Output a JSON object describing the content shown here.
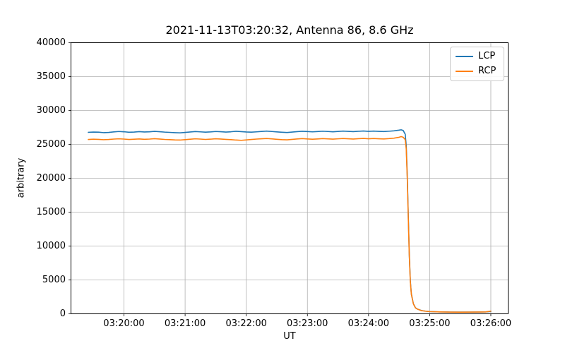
{
  "chart_data": {
    "type": "line",
    "title": "2021-11-13T03:20:32, Antenna 86, 8.6 GHz",
    "xlabel": "UT",
    "ylabel": "arbitrary",
    "x_axis_note": "x values are seconds relative to 03:20:00 UT",
    "xlim": [
      -52,
      377
    ],
    "ylim": [
      0,
      40000
    ],
    "grid": true,
    "grid_color": "#b0b0b0",
    "background_color": "#ffffff",
    "spine_color": "#000000",
    "xticks": [
      0,
      60,
      120,
      180,
      240,
      300,
      360
    ],
    "xtick_labels": [
      "03:20:00",
      "03:21:00",
      "03:22:00",
      "03:23:00",
      "03:24:00",
      "03:25:00",
      "03:26:00"
    ],
    "yticks": [
      0,
      5000,
      10000,
      15000,
      20000,
      25000,
      30000,
      35000,
      40000
    ],
    "ytick_labels": [
      "0",
      "5000",
      "10000",
      "15000",
      "20000",
      "25000",
      "30000",
      "35000",
      "40000"
    ],
    "legend": {
      "position": "upper right",
      "entries": [
        "LCP",
        "RCP"
      ]
    },
    "series": [
      {
        "name": "LCP",
        "color": "#1f77b4",
        "points": [
          [
            -35,
            26780
          ],
          [
            -30,
            26820
          ],
          [
            -25,
            26800
          ],
          [
            -20,
            26730
          ],
          [
            -15,
            26760
          ],
          [
            -10,
            26840
          ],
          [
            -5,
            26900
          ],
          [
            0,
            26860
          ],
          [
            5,
            26790
          ],
          [
            10,
            26820
          ],
          [
            15,
            26880
          ],
          [
            20,
            26830
          ],
          [
            25,
            26860
          ],
          [
            30,
            26920
          ],
          [
            35,
            26870
          ],
          [
            40,
            26810
          ],
          [
            45,
            26770
          ],
          [
            50,
            26730
          ],
          [
            55,
            26700
          ],
          [
            60,
            26760
          ],
          [
            65,
            26830
          ],
          [
            70,
            26890
          ],
          [
            75,
            26850
          ],
          [
            80,
            26800
          ],
          [
            85,
            26840
          ],
          [
            90,
            26900
          ],
          [
            95,
            26870
          ],
          [
            100,
            26820
          ],
          [
            105,
            26860
          ],
          [
            110,
            26930
          ],
          [
            115,
            26880
          ],
          [
            120,
            26830
          ],
          [
            125,
            26800
          ],
          [
            130,
            26850
          ],
          [
            135,
            26910
          ],
          [
            140,
            26960
          ],
          [
            145,
            26900
          ],
          [
            150,
            26840
          ],
          [
            155,
            26790
          ],
          [
            160,
            26750
          ],
          [
            165,
            26820
          ],
          [
            170,
            26880
          ],
          [
            175,
            26930
          ],
          [
            180,
            26890
          ],
          [
            185,
            26850
          ],
          [
            190,
            26890
          ],
          [
            195,
            26940
          ],
          [
            200,
            26900
          ],
          [
            205,
            26860
          ],
          [
            210,
            26910
          ],
          [
            215,
            26960
          ],
          [
            220,
            26920
          ],
          [
            225,
            26880
          ],
          [
            230,
            26930
          ],
          [
            235,
            26970
          ],
          [
            240,
            26920
          ],
          [
            245,
            26960
          ],
          [
            250,
            26920
          ],
          [
            255,
            26890
          ],
          [
            260,
            26940
          ],
          [
            265,
            27000
          ],
          [
            270,
            27100
          ],
          [
            272,
            27150
          ],
          [
            274,
            27050
          ],
          [
            276,
            26500
          ],
          [
            277,
            24800
          ],
          [
            278,
            20500
          ],
          [
            279,
            14500
          ],
          [
            280,
            8800
          ],
          [
            281,
            4900
          ],
          [
            282,
            2950
          ],
          [
            284,
            1500
          ],
          [
            286,
            900
          ],
          [
            288,
            700
          ],
          [
            292,
            480
          ],
          [
            296,
            390
          ],
          [
            300,
            330
          ],
          [
            310,
            280
          ],
          [
            320,
            260
          ],
          [
            330,
            250
          ],
          [
            340,
            255
          ],
          [
            350,
            265
          ],
          [
            355,
            280
          ],
          [
            360,
            340
          ]
        ]
      },
      {
        "name": "RCP",
        "color": "#ff7f0e",
        "points": [
          [
            -35,
            25720
          ],
          [
            -30,
            25760
          ],
          [
            -25,
            25740
          ],
          [
            -20,
            25690
          ],
          [
            -15,
            25720
          ],
          [
            -10,
            25780
          ],
          [
            -5,
            25820
          ],
          [
            0,
            25780
          ],
          [
            5,
            25720
          ],
          [
            10,
            25760
          ],
          [
            15,
            25800
          ],
          [
            20,
            25750
          ],
          [
            25,
            25780
          ],
          [
            30,
            25840
          ],
          [
            35,
            25790
          ],
          [
            40,
            25730
          ],
          [
            45,
            25700
          ],
          [
            50,
            25660
          ],
          [
            55,
            25640
          ],
          [
            60,
            25700
          ],
          [
            65,
            25760
          ],
          [
            70,
            25820
          ],
          [
            75,
            25780
          ],
          [
            80,
            25730
          ],
          [
            85,
            25770
          ],
          [
            90,
            25830
          ],
          [
            95,
            25790
          ],
          [
            100,
            25740
          ],
          [
            105,
            25700
          ],
          [
            110,
            25640
          ],
          [
            115,
            25600
          ],
          [
            120,
            25660
          ],
          [
            125,
            25720
          ],
          [
            130,
            25780
          ],
          [
            135,
            25830
          ],
          [
            140,
            25870
          ],
          [
            145,
            25810
          ],
          [
            150,
            25750
          ],
          [
            155,
            25700
          ],
          [
            160,
            25670
          ],
          [
            165,
            25740
          ],
          [
            170,
            25800
          ],
          [
            175,
            25850
          ],
          [
            180,
            25800
          ],
          [
            185,
            25760
          ],
          [
            190,
            25800
          ],
          [
            195,
            25850
          ],
          [
            200,
            25810
          ],
          [
            205,
            25770
          ],
          [
            210,
            25820
          ],
          [
            215,
            25870
          ],
          [
            220,
            25830
          ],
          [
            225,
            25790
          ],
          [
            230,
            25840
          ],
          [
            235,
            25880
          ],
          [
            240,
            25830
          ],
          [
            245,
            25870
          ],
          [
            250,
            25830
          ],
          [
            255,
            25800
          ],
          [
            260,
            25850
          ],
          [
            265,
            25920
          ],
          [
            270,
            26050
          ],
          [
            272,
            26150
          ],
          [
            274,
            26050
          ],
          [
            276,
            25700
          ],
          [
            277,
            24300
          ],
          [
            278,
            20100
          ],
          [
            279,
            14200
          ],
          [
            280,
            8600
          ],
          [
            281,
            4800
          ],
          [
            282,
            2900
          ],
          [
            284,
            1470
          ],
          [
            286,
            880
          ],
          [
            288,
            690
          ],
          [
            292,
            470
          ],
          [
            296,
            385
          ],
          [
            300,
            325
          ],
          [
            310,
            275
          ],
          [
            320,
            255
          ],
          [
            330,
            245
          ],
          [
            340,
            250
          ],
          [
            350,
            262
          ],
          [
            355,
            278
          ],
          [
            360,
            400
          ]
        ]
      }
    ]
  }
}
